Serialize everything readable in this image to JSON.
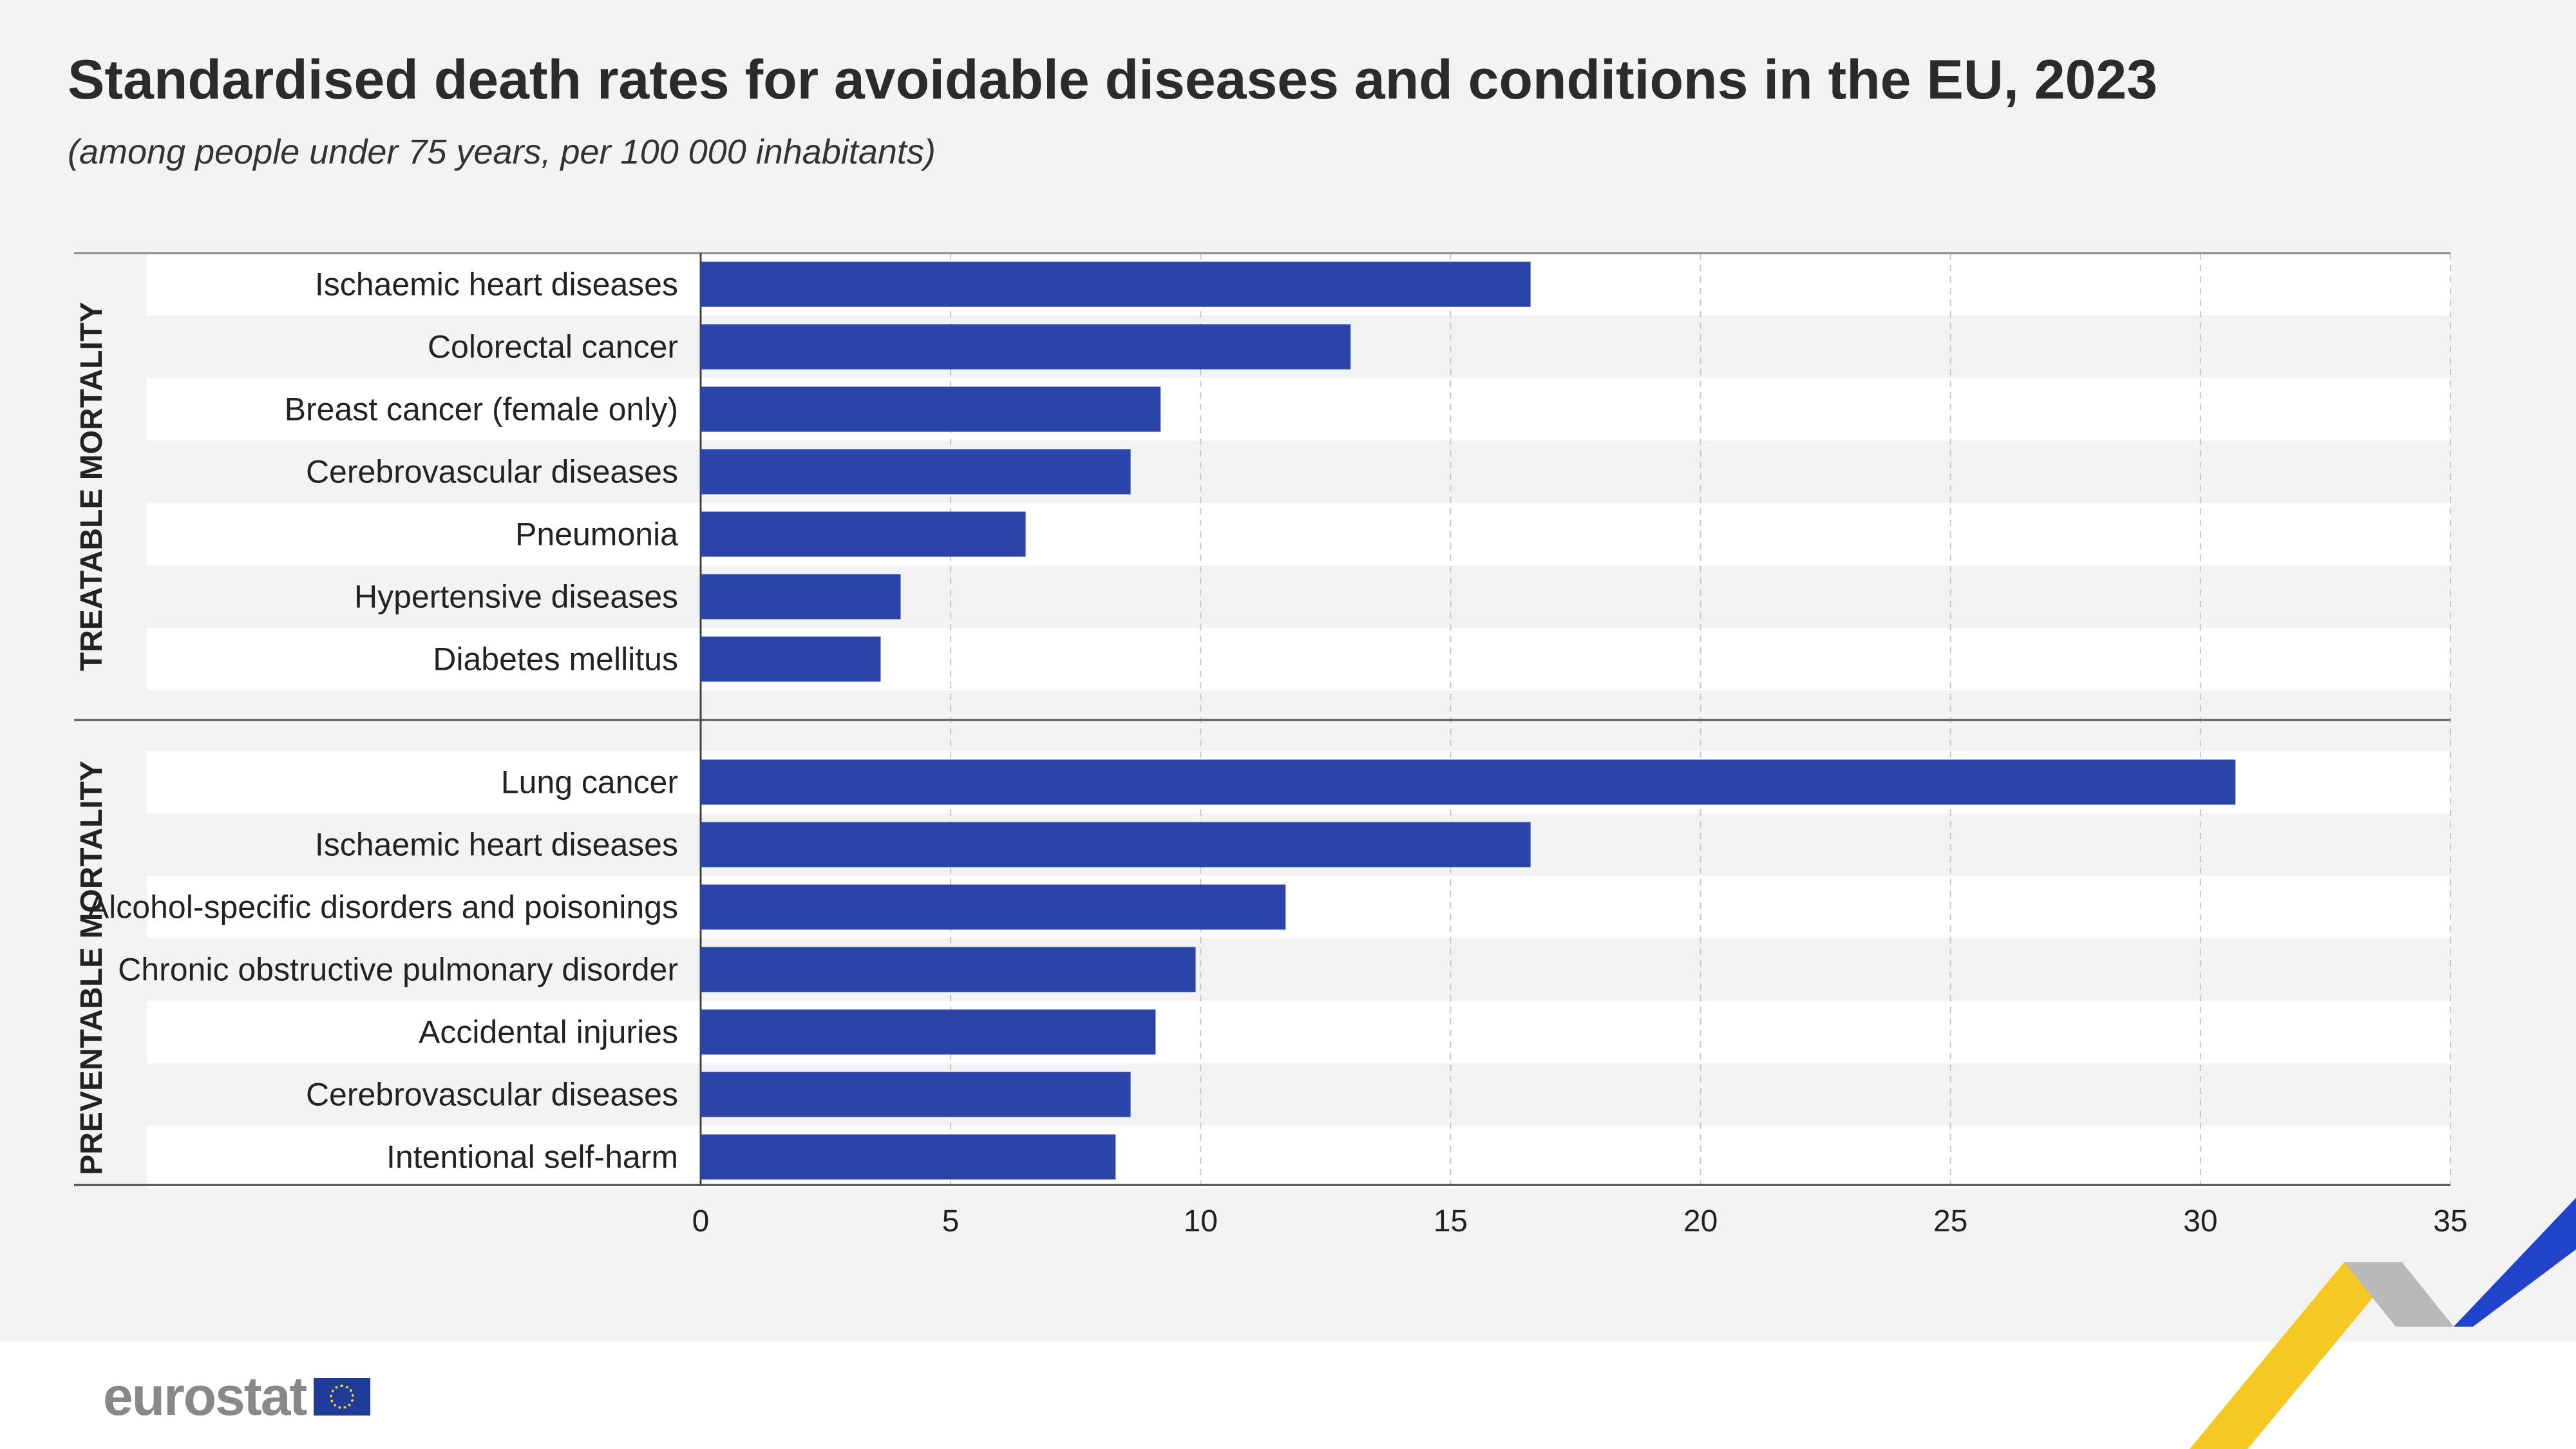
{
  "title": "Standardised death rates for avoidable diseases and conditions in the EU, 2023",
  "subtitle": "(among people under 75 years, per 100 000 inhabitants)",
  "logo": {
    "text": "eurostat"
  },
  "colors": {
    "bar": "#2a44a8",
    "background": "#f3f3f3",
    "band": "#ffffff"
  },
  "chart_data": {
    "type": "bar",
    "orientation": "horizontal",
    "xlim": [
      0,
      35
    ],
    "ticks": [
      0,
      5,
      10,
      15,
      20,
      25,
      30,
      35
    ],
    "grid": true,
    "groups": [
      {
        "name": "TREATABLE MORTALITY",
        "categories": [
          "Ischaemic heart diseases",
          "Colorectal cancer",
          "Breast cancer (female only)",
          "Cerebrovascular diseases",
          "Pneumonia",
          "Hypertensive diseases",
          "Diabetes mellitus"
        ],
        "values": [
          16.6,
          13.0,
          9.2,
          8.6,
          6.5,
          4.0,
          3.6
        ]
      },
      {
        "name": "PREVENTABLE MORTALITY",
        "categories": [
          "Lung cancer",
          "Ischaemic heart diseases",
          "Alcohol-specific disorders and poisonings",
          "Chronic obstructive pulmonary disorder",
          "Accidental injuries",
          "Cerebrovascular diseases",
          "Intentional self-harm"
        ],
        "values": [
          30.7,
          16.6,
          11.7,
          9.9,
          9.1,
          8.6,
          8.3
        ]
      }
    ]
  }
}
